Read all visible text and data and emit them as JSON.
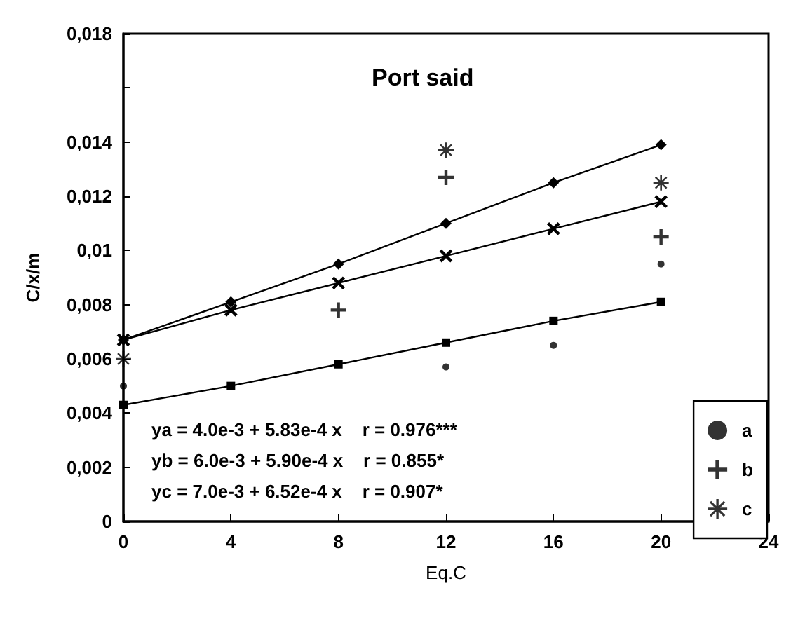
{
  "chart_data": {
    "type": "scatter",
    "title": "Port said",
    "xlabel": "Eq.C",
    "ylabel": "C/x/m",
    "x": [
      0,
      4,
      8,
      12,
      16,
      20
    ],
    "series": [
      {
        "type": "line",
        "color": "#000000",
        "marker": "cross",
        "values": [
          0.0067,
          0.0078,
          0.0088,
          0.0098,
          0.0108,
          0.0118
        ]
      },
      {
        "type": "line",
        "color": "#000000",
        "marker": "diamond",
        "values": [
          0.0067,
          0.0081,
          0.0095,
          0.011,
          0.0125,
          0.0139
        ]
      },
      {
        "type": "line",
        "color": "#000000",
        "marker": "square",
        "values": [
          0.0043,
          0.005,
          0.0058,
          0.0066,
          0.0074,
          0.0081
        ]
      },
      {
        "name": "a",
        "color": "#000000",
        "marker": "circle",
        "x": [
          0,
          12,
          16,
          20
        ],
        "values": [
          0.005,
          0.0057,
          0.0065,
          0.0095
        ]
      },
      {
        "name": "b",
        "color": "#000000",
        "marker": "cross",
        "x": [
          8,
          12,
          20
        ],
        "values": [
          0.0078,
          0.0127,
          0.0105
        ]
      },
      {
        "name": "c",
        "color": "#000000",
        "marker": "star",
        "x": [
          0,
          12,
          20
        ],
        "values": [
          0.006,
          0.0137,
          0.0125
        ]
      }
    ],
    "xlim": [
      0,
      24
    ],
    "xticks": [
      0,
      4,
      8,
      12,
      16,
      20,
      24
    ],
    "ylim": [
      0,
      0.018
    ],
    "yticks": [
      0,
      {
        "value": 0.002,
        "label": "0,002"
      },
      {
        "value": 0.004,
        "label": "0,004"
      },
      {
        "value": 0.006,
        "label": "0,006"
      },
      {
        "value": 0.008,
        "label": "0,008"
      },
      {
        "value": 0.01,
        "label": "0,01"
      },
      {
        "value": 0.012,
        "label": "0,012"
      },
      {
        "value": 0.014,
        "label": "0,014"
      },
      {
        "value": 0.016,
        "label": null
      },
      {
        "value": 0.018,
        "label": "0,018"
      }
    ],
    "annotations": [
      "ya = 4.0e-3 + 5.83e-4 x    r = 0.976***",
      "yb = 6.0e-3 + 5.90e-4 x    r = 0.855*",
      "yc = 7.0e-3 + 6.52e-4 x    r = 0.907*"
    ],
    "legend": "bottom right",
    "grid": false
  }
}
